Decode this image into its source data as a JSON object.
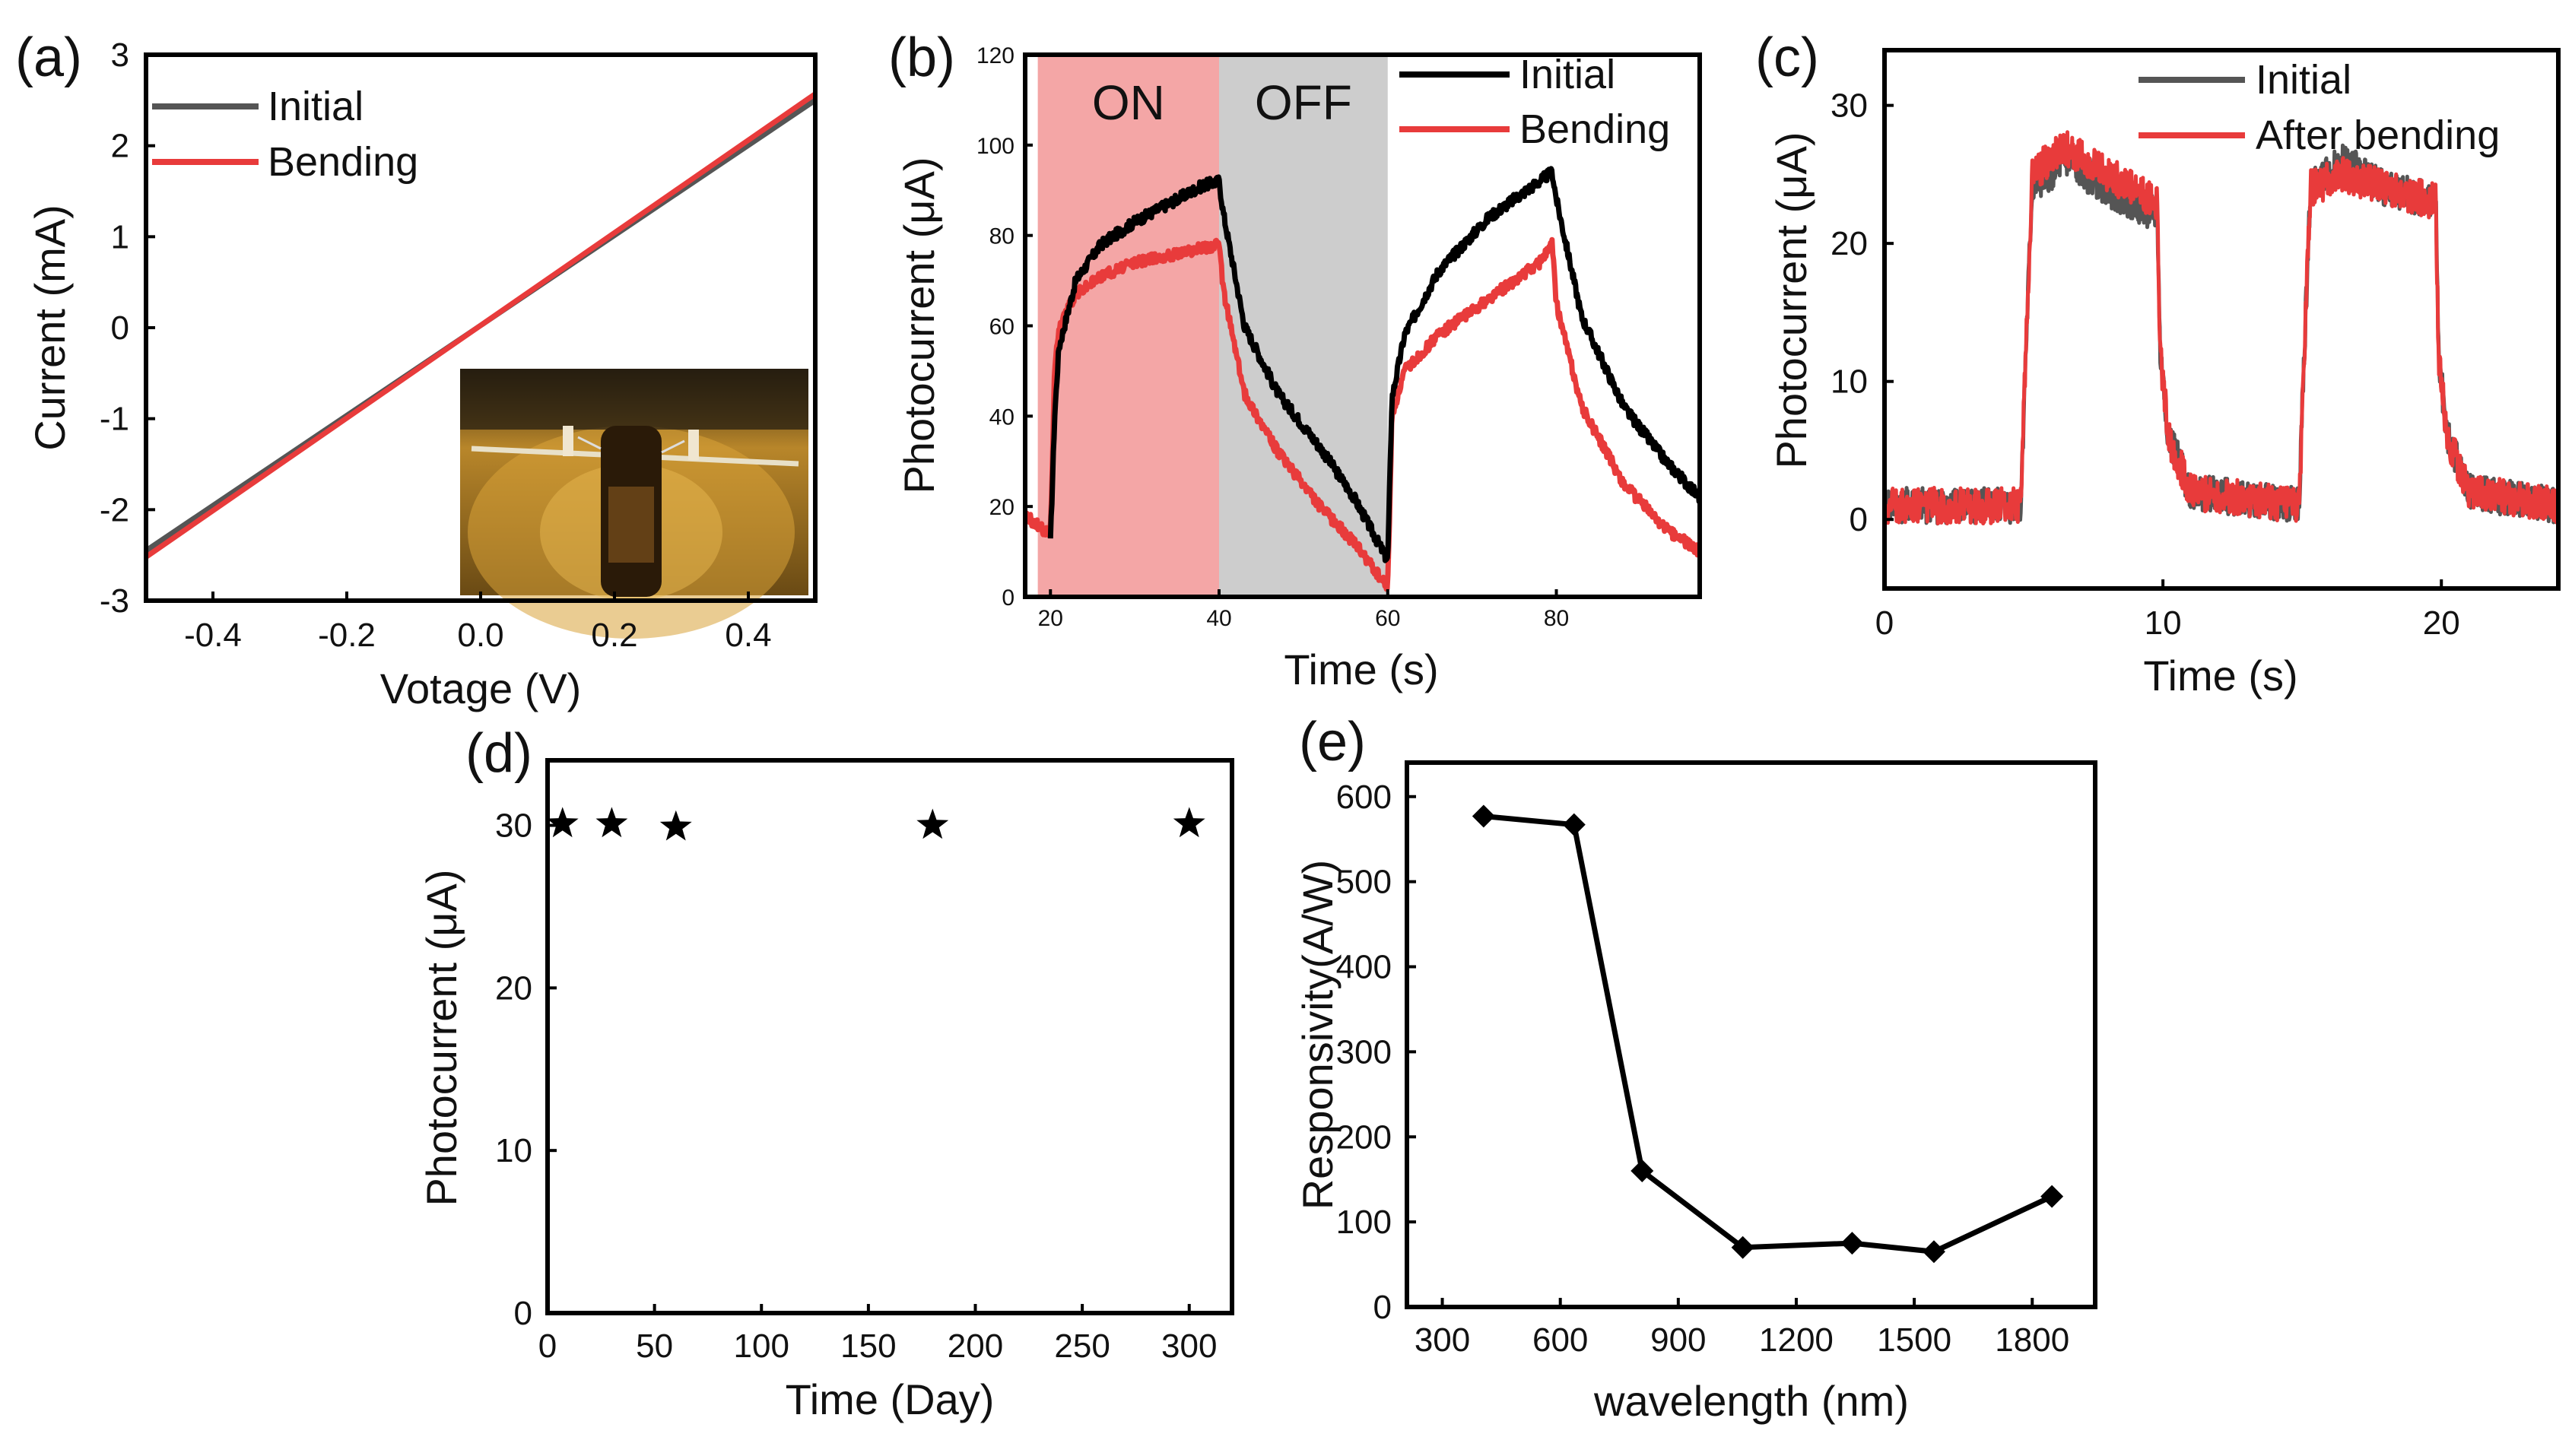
{
  "colors": {
    "black": "#000000",
    "gray": "#555555",
    "red": "#e83b3b",
    "on_region": "#f4a6a6",
    "off_region": "#cdcdcd"
  },
  "chart_data": [
    {
      "panel": "(a)",
      "type": "line",
      "xlabel": "Votage (V)",
      "ylabel": "Current (mA)",
      "xlim": [
        -0.5,
        0.5
      ],
      "ylim": [
        -3,
        3
      ],
      "xticks": [
        "-0.4",
        "-0.2",
        "0.0",
        "0.2",
        "0.4"
      ],
      "yticks": [
        "3",
        "2",
        "1",
        "0",
        "-1",
        "-2",
        "-3"
      ],
      "legend": [
        "Initial",
        "Bending"
      ],
      "series": [
        {
          "name": "Initial",
          "color": "#555555",
          "x": [
            -0.5,
            0.5
          ],
          "y": [
            -2.45,
            2.5
          ]
        },
        {
          "name": "Bending",
          "color": "#e83b3b",
          "x": [
            -0.5,
            0.5
          ],
          "y": [
            -2.52,
            2.57
          ]
        }
      ],
      "inset": "photo-of-device-on-bent-substrate"
    },
    {
      "panel": "(b)",
      "type": "line",
      "xlabel": "Time (s)",
      "ylabel": "Photocurrent (μA)",
      "xlim": [
        17,
        97
      ],
      "ylim": [
        0,
        120
      ],
      "xticks": [
        "20",
        "40",
        "60",
        "80"
      ],
      "yticks": [
        "120",
        "100",
        "80",
        "60",
        "40",
        "20",
        "0"
      ],
      "regions": [
        {
          "label": "ON",
          "x0": 18.5,
          "x1": 40
        },
        {
          "label": "OFF",
          "x0": 40,
          "x1": 60
        }
      ],
      "legend": [
        "Initial",
        "Bending"
      ],
      "series": [
        {
          "name": "Initial",
          "color": "#000000",
          "x": [
            20,
            20.5,
            21,
            23,
            26,
            30,
            35,
            38,
            40,
            40.5,
            43,
            47,
            52,
            56,
            60,
            60.5,
            62,
            66,
            72,
            78,
            79.5,
            80,
            83,
            88,
            93,
            97
          ],
          "y": [
            12,
            40,
            55,
            70,
            78,
            83,
            88,
            91,
            92,
            85,
            60,
            45,
            33,
            22,
            8,
            44,
            58,
            72,
            84,
            92,
            94,
            88,
            62,
            42,
            30,
            22
          ]
        },
        {
          "name": "Bending",
          "color": "#e83b3b",
          "x": [
            17,
            19,
            20,
            20.5,
            21,
            23,
            26,
            30,
            35,
            40,
            40.5,
            43,
            47,
            52,
            56,
            60,
            60.5,
            62,
            66,
            72,
            78,
            79.5,
            80,
            83,
            88,
            93,
            97
          ],
          "y": [
            18,
            15,
            14,
            50,
            60,
            67,
            71,
            74,
            76,
            78,
            68,
            45,
            32,
            20,
            12,
            2,
            40,
            50,
            58,
            66,
            74,
            78,
            65,
            42,
            25,
            15,
            10
          ]
        }
      ]
    },
    {
      "panel": "(c)",
      "type": "line",
      "xlabel": "Time (s)",
      "ylabel": "Photocurrent (μA)",
      "xlim": [
        0,
        24.2
      ],
      "ylim": [
        -5,
        34
      ],
      "xticks": [
        "0",
        "10",
        "20"
      ],
      "yticks": [
        "30",
        "20",
        "10",
        "0"
      ],
      "legend": [
        "Initial",
        "After bending"
      ],
      "series": [
        {
          "name": "Initial",
          "color": "#555555",
          "x": [
            0,
            4.9,
            5.0,
            5.3,
            6.5,
            8,
            9.8,
            9.9,
            10.2,
            11,
            14.9,
            15.0,
            15.3,
            16.5,
            18,
            19.8,
            19.9,
            20.2,
            21,
            24.2
          ],
          "y": [
            1,
            1,
            8,
            24,
            26,
            24,
            22,
            12,
            6,
            2,
            1,
            8,
            24,
            26,
            24,
            23,
            12,
            6,
            2,
            1
          ]
        },
        {
          "name": "After bending",
          "color": "#e83b3b",
          "x": [
            0,
            4.9,
            5.0,
            5.3,
            6.5,
            8,
            9.8,
            9.9,
            10.2,
            11,
            14.9,
            15.0,
            15.3,
            16.5,
            18,
            19.8,
            19.9,
            20.2,
            21,
            24.2
          ],
          "y": [
            1,
            1,
            8,
            25,
            27,
            25,
            23,
            12,
            6,
            2,
            1,
            8,
            24,
            25,
            24,
            23,
            12,
            6,
            2,
            1
          ]
        }
      ]
    },
    {
      "panel": "(d)",
      "type": "scatter",
      "xlabel": "Time (Day)",
      "ylabel": "Photocurrent (μA)",
      "xlim": [
        0,
        320
      ],
      "ylim": [
        0,
        34
      ],
      "xticks": [
        "0",
        "50",
        "100",
        "150",
        "200",
        "250",
        "300"
      ],
      "yticks": [
        "30",
        "20",
        "10",
        "0"
      ],
      "series": [
        {
          "name": "Photocurrent",
          "marker": "star",
          "x": [
            7,
            30,
            60,
            180,
            300
          ],
          "y": [
            30.1,
            30.1,
            29.9,
            30.0,
            30.1
          ]
        }
      ]
    },
    {
      "panel": "(e)",
      "type": "line",
      "xlabel": "wavelength (nm)",
      "ylabel": "Responsivity(A/W)",
      "xlim": [
        210,
        1960
      ],
      "ylim": [
        0,
        640
      ],
      "xticks": [
        "300",
        "600",
        "900",
        "1200",
        "1500",
        "1800"
      ],
      "yticks": [
        "600",
        "500",
        "400",
        "300",
        "200",
        "100",
        "0"
      ],
      "series": [
        {
          "name": "Responsivity",
          "marker": "diamond",
          "x": [
            405,
            635,
            808,
            1064,
            1342,
            1550,
            1850
          ],
          "y": [
            577,
            567,
            160,
            70,
            75,
            65,
            130
          ]
        }
      ]
    }
  ]
}
